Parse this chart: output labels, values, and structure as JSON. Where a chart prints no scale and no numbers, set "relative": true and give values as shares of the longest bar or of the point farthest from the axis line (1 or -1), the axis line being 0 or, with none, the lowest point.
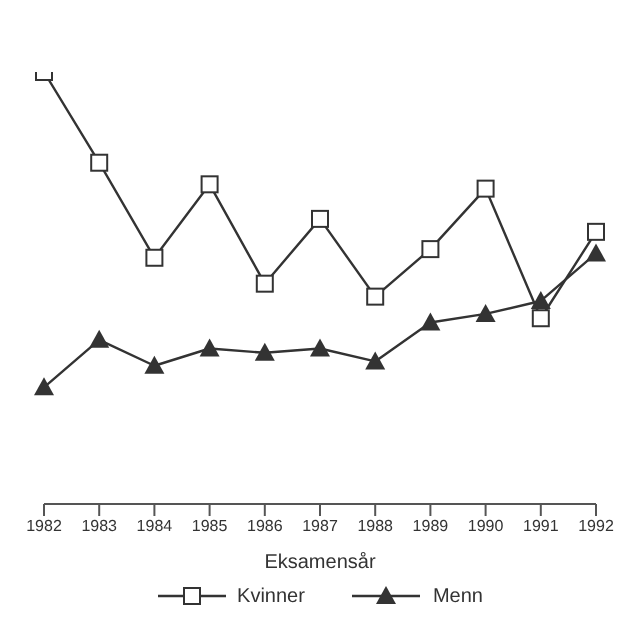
{
  "chart_data": {
    "type": "line",
    "xlabel": "Eksamensår",
    "relative": true,
    "categories": [
      "1982",
      "1983",
      "1984",
      "1985",
      "1986",
      "1987",
      "1988",
      "1989",
      "1990",
      "1991",
      "1992"
    ],
    "series": [
      {
        "name": "Kvinner",
        "color": "#333333",
        "marker": "square",
        "values": [
          1,
          0.79,
          0.57,
          0.74,
          0.51,
          0.66,
          0.48,
          0.59,
          0.73,
          0.43,
          0.63
        ]
      },
      {
        "name": "Menn",
        "color": "#333333",
        "marker": "triangle",
        "values": [
          0.27,
          0.38,
          0.32,
          0.36,
          0.35,
          0.36,
          0.33,
          0.42,
          0.44,
          0.47,
          0.58
        ]
      }
    ],
    "legend": "bottom",
    "grid": false
  }
}
